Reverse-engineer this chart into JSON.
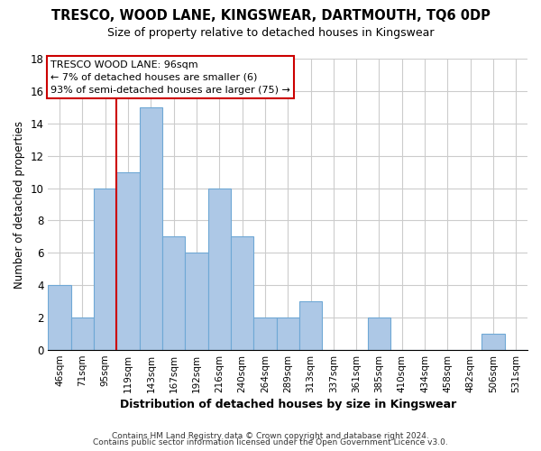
{
  "title": "TRESCO, WOOD LANE, KINGSWEAR, DARTMOUTH, TQ6 0DP",
  "subtitle": "Size of property relative to detached houses in Kingswear",
  "xlabel": "Distribution of detached houses by size in Kingswear",
  "ylabel": "Number of detached properties",
  "bar_labels": [
    "46sqm",
    "71sqm",
    "95sqm",
    "119sqm",
    "143sqm",
    "167sqm",
    "192sqm",
    "216sqm",
    "240sqm",
    "264sqm",
    "289sqm",
    "313sqm",
    "337sqm",
    "361sqm",
    "385sqm",
    "410sqm",
    "434sqm",
    "458sqm",
    "482sqm",
    "506sqm",
    "531sqm"
  ],
  "bar_values": [
    4,
    2,
    10,
    11,
    15,
    7,
    6,
    10,
    7,
    2,
    2,
    3,
    0,
    0,
    2,
    0,
    0,
    0,
    0,
    1,
    0
  ],
  "bar_color": "#adc8e6",
  "bar_edge_color": "#6fa8d5",
  "vline_color": "#cc0000",
  "ylim": [
    0,
    18
  ],
  "yticks": [
    0,
    2,
    4,
    6,
    8,
    10,
    12,
    14,
    16,
    18
  ],
  "annotation_title": "TRESCO WOOD LANE: 96sqm",
  "annotation_line1": "← 7% of detached houses are smaller (6)",
  "annotation_line2": "93% of semi-detached houses are larger (75) →",
  "footer_line1": "Contains HM Land Registry data © Crown copyright and database right 2024.",
  "footer_line2": "Contains public sector information licensed under the Open Government Licence v3.0.",
  "background_color": "#ffffff",
  "grid_color": "#cccccc",
  "title_fontsize": 10.5,
  "subtitle_fontsize": 9
}
